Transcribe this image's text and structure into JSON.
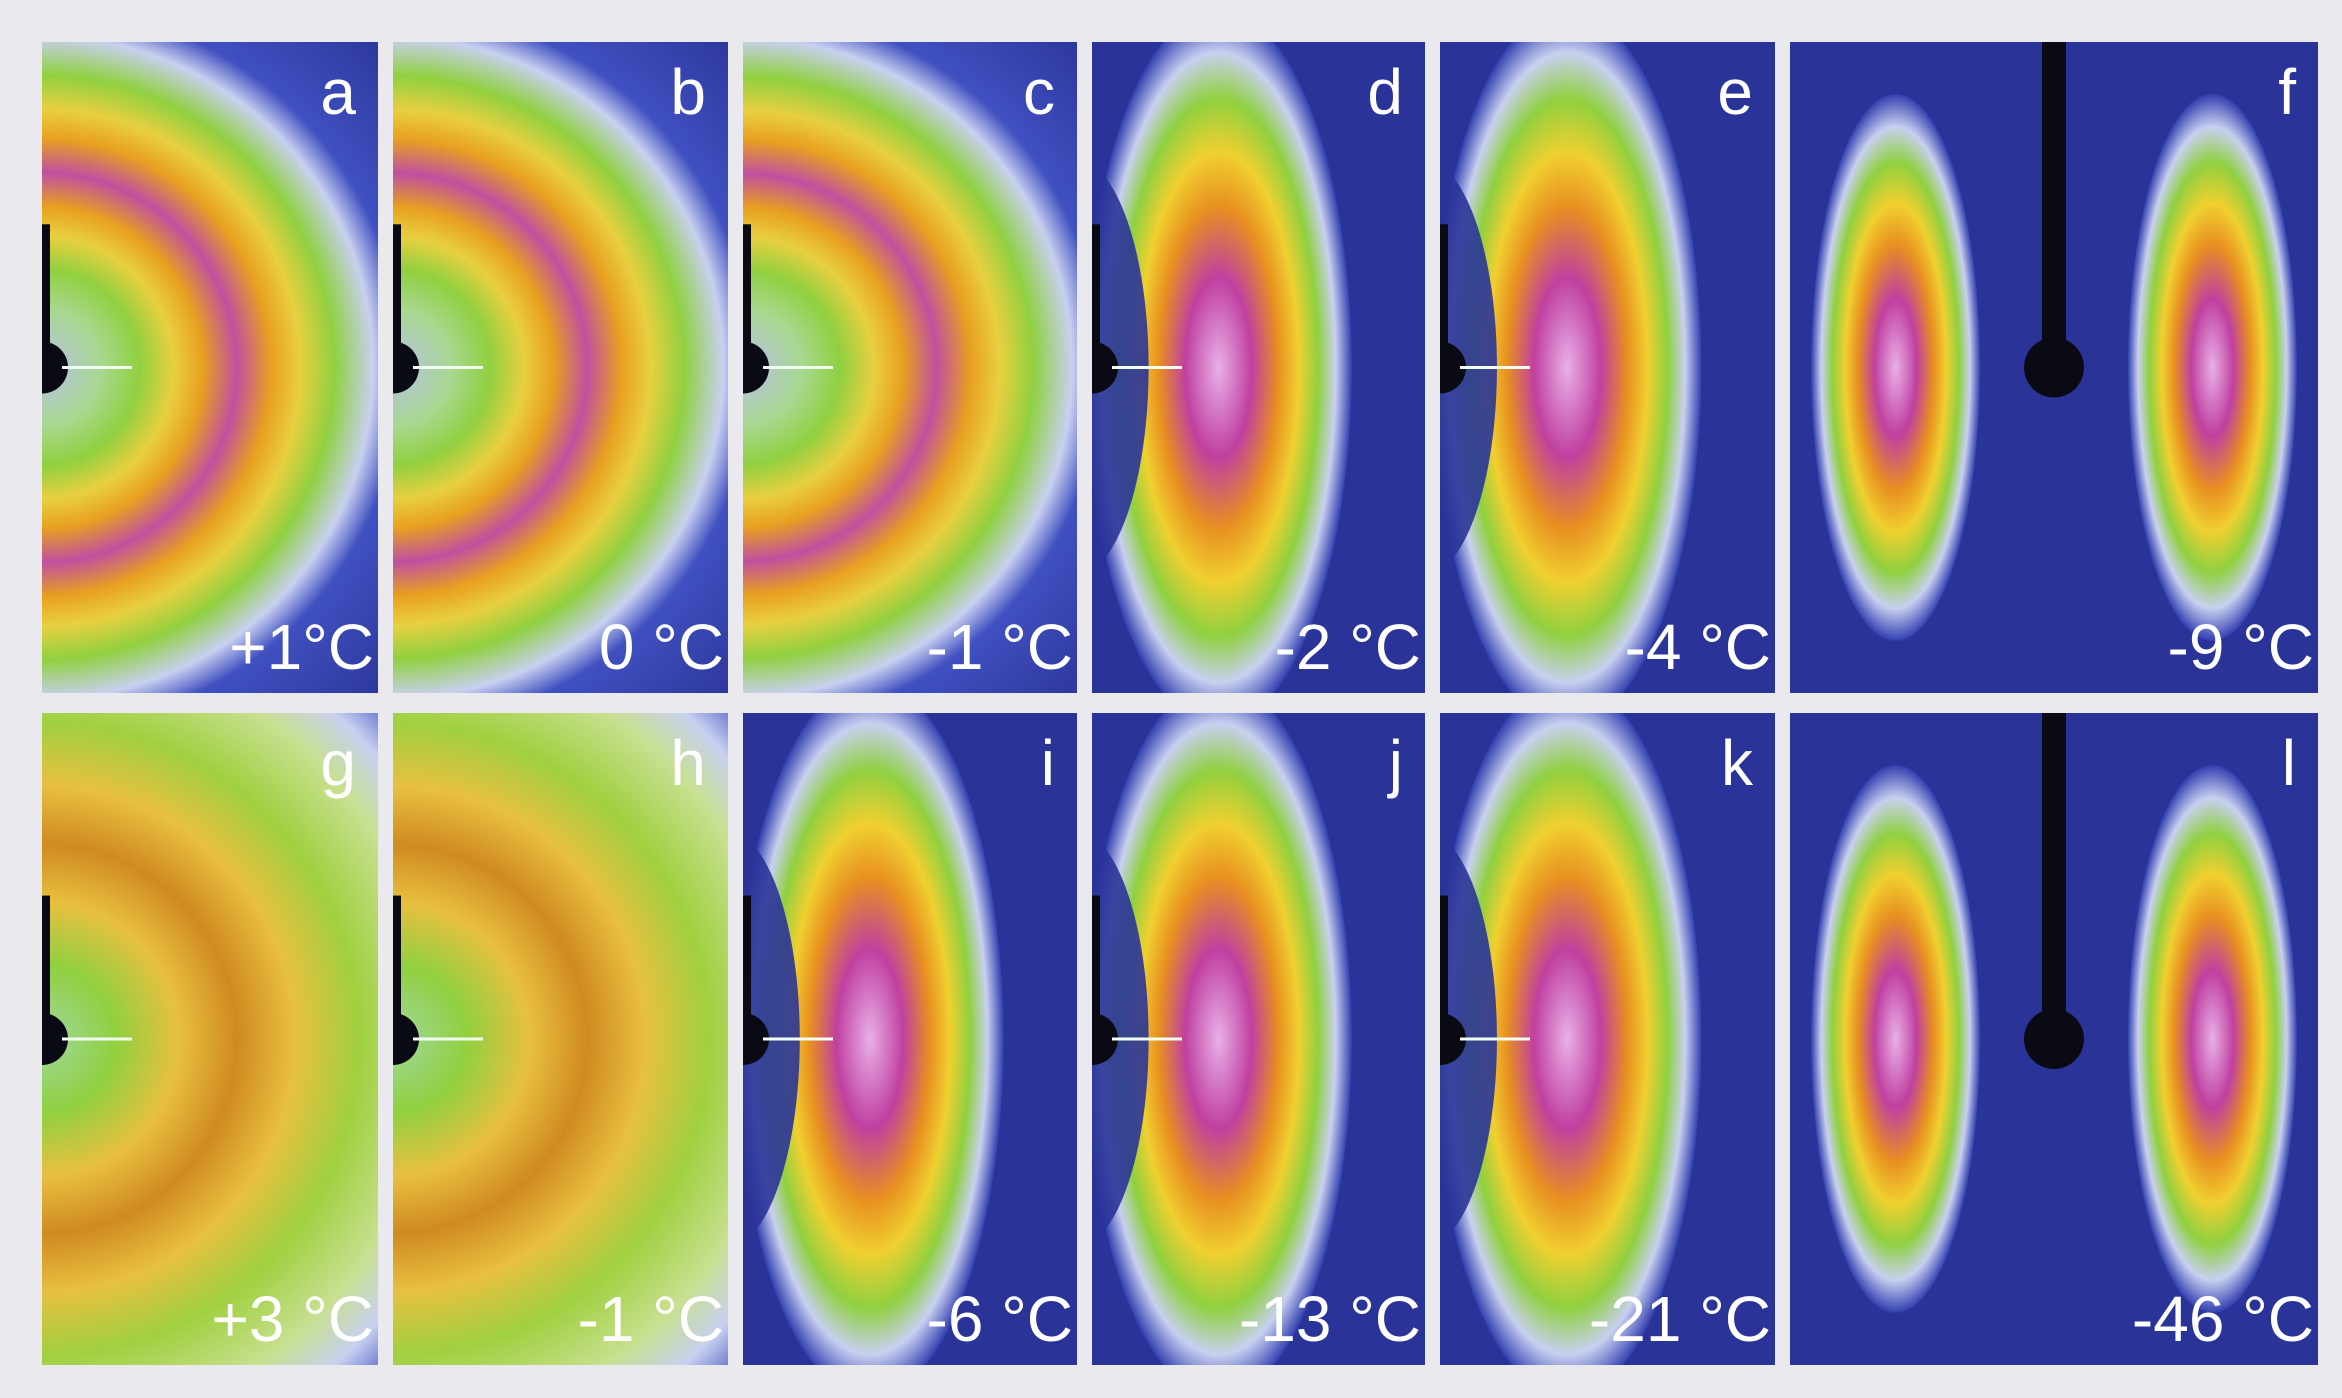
{
  "panels": [
    {
      "letter": "a",
      "temperature": "+1°C"
    },
    {
      "letter": "b",
      "temperature": "0 °C"
    },
    {
      "letter": "c",
      "temperature": "-1 °C"
    },
    {
      "letter": "d",
      "temperature": "-2 °C"
    },
    {
      "letter": "e",
      "temperature": "-4 °C"
    },
    {
      "letter": "f",
      "temperature": "-9 °C"
    },
    {
      "letter": "g",
      "temperature": "+3 °C"
    },
    {
      "letter": "h",
      "temperature": "-1 °C"
    },
    {
      "letter": "i",
      "temperature": "-6 °C"
    },
    {
      "letter": "j",
      "temperature": "-13 °C"
    },
    {
      "letter": "k",
      "temperature": "-21 °C"
    },
    {
      "letter": "l",
      "temperature": "-46 °C"
    }
  ]
}
